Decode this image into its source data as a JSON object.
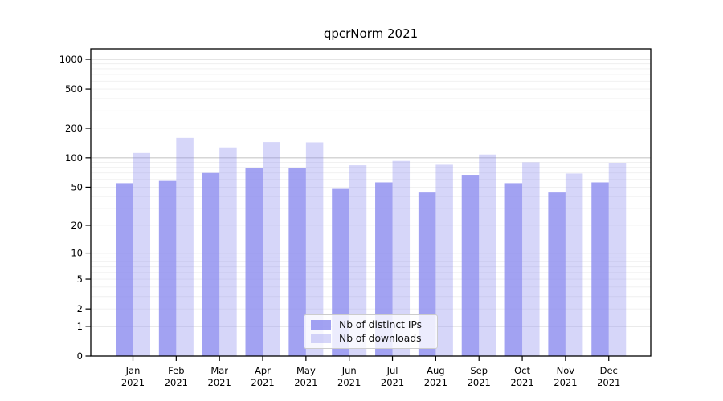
{
  "title": "qpcrNorm 2021",
  "chart_data": {
    "type": "bar",
    "title": "qpcrNorm 2021",
    "categories": [
      "Jan",
      "Feb",
      "Mar",
      "Apr",
      "May",
      "Jun",
      "Jul",
      "Aug",
      "Sep",
      "Oct",
      "Nov",
      "Dec"
    ],
    "year_label": "2021",
    "series": [
      {
        "name": "Nb of distinct IPs",
        "color": "#8888ee",
        "alpha": 0.78,
        "values": [
          55,
          58,
          70,
          78,
          79,
          48,
          56,
          44,
          67,
          55,
          44,
          56
        ]
      },
      {
        "name": "Nb of downloads",
        "color": "#8888ee",
        "alpha": 0.34,
        "values": [
          112,
          160,
          128,
          145,
          144,
          84,
          93,
          85,
          108,
          90,
          69,
          89
        ]
      }
    ],
    "yscale": "log1p",
    "yticks": [
      0,
      1,
      2,
      5,
      10,
      20,
      50,
      100,
      200,
      500,
      1000
    ],
    "ylim": [
      0,
      1000
    ],
    "xlabel": "",
    "ylabel": "",
    "grid": true,
    "legend_position": "lower center"
  },
  "colors": {
    "grid_major": "#c9c9c9",
    "grid_minor": "#efefef",
    "axis": "#000000",
    "tick_label": "#000000",
    "legend_border": "#cccccc"
  }
}
